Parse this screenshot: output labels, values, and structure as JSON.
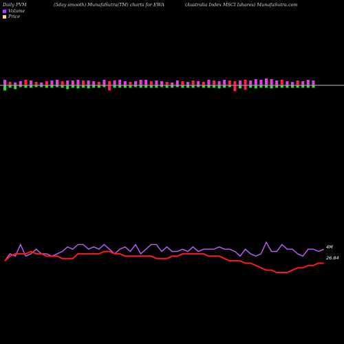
{
  "header": {
    "left": "Daily PVM",
    "center_left": "(5day smooth) MunafaSutra(TM) charts for EWA",
    "center_right": "(Australia  Index MSCI Ishares) MunafaSutra.com"
  },
  "legend": {
    "volume_label": "Volume",
    "price_label": "Price",
    "volume_color": "#a040ff",
    "price_color": "#ffd0a0"
  },
  "chart_data": {
    "type": "line",
    "title": "",
    "points": 62,
    "right_labels": [
      "4M",
      "26.84"
    ],
    "grid": false,
    "legend_position": "top-left",
    "pvm_bars": [
      {
        "up": 8,
        "down": 7,
        "up_color": "#e040e0",
        "down_color": "#30e030"
      },
      {
        "up": 5,
        "down": 3,
        "up_color": "#ff2050",
        "down_color": "#30e030"
      },
      {
        "up": 4,
        "down": 5,
        "up_color": "#e040e0",
        "down_color": "#30e030"
      },
      {
        "up": 6,
        "down": 2,
        "up_color": "#e040e0",
        "down_color": "#30e030"
      },
      {
        "up": 8,
        "down": 3,
        "up_color": "#ff2050",
        "down_color": "#30e030"
      },
      {
        "up": 7,
        "down": 3,
        "up_color": "#e040e0",
        "down_color": "#30e030"
      },
      {
        "up": 5,
        "down": 2,
        "up_color": "#ff2050",
        "down_color": "#30e030"
      },
      {
        "up": 4,
        "down": 2,
        "up_color": "#e040e0",
        "down_color": "#30e030"
      },
      {
        "up": 6,
        "down": 3,
        "up_color": "#ff2050",
        "down_color": "#30e030"
      },
      {
        "up": 7,
        "down": 3,
        "up_color": "#e040e0",
        "down_color": "#30e030"
      },
      {
        "up": 8,
        "down": 2,
        "up_color": "#e040e0",
        "down_color": "#30e030"
      },
      {
        "up": 6,
        "down": 3,
        "up_color": "#ff2050",
        "down_color": "#30e030"
      },
      {
        "up": 7,
        "down": 5,
        "up_color": "#e040e0",
        "down_color": "#30e030"
      },
      {
        "up": 7,
        "down": 3,
        "up_color": "#e040e0",
        "down_color": "#30e030"
      },
      {
        "up": 8,
        "down": 4,
        "up_color": "#e040e0",
        "down_color": "#30e030"
      },
      {
        "up": 7,
        "down": 3,
        "up_color": "#ff2050",
        "down_color": "#30e030"
      },
      {
        "up": 7,
        "down": 4,
        "up_color": "#e040e0",
        "down_color": "#30e030"
      },
      {
        "up": 6,
        "down": 3,
        "up_color": "#e040e0",
        "down_color": "#30e030"
      },
      {
        "up": 5,
        "down": 3,
        "up_color": "#ff2050",
        "down_color": "#30e030"
      },
      {
        "up": 8,
        "down": 2,
        "up_color": "#e040e0",
        "down_color": "#30e030"
      },
      {
        "up": 6,
        "down": 7,
        "up_color": "#ff2050",
        "down_color": "#ff2050"
      },
      {
        "up": 7,
        "down": 3,
        "up_color": "#e040e0",
        "down_color": "#30e030"
      },
      {
        "up": 8,
        "down": 3,
        "up_color": "#e040e0",
        "down_color": "#30e030"
      },
      {
        "up": 6,
        "down": 3,
        "up_color": "#e040e0",
        "down_color": "#30e030"
      },
      {
        "up": 5,
        "down": 3,
        "up_color": "#ff2050",
        "down_color": "#30e030"
      },
      {
        "up": 6,
        "down": 2,
        "up_color": "#e040e0",
        "down_color": "#30e030"
      },
      {
        "up": 8,
        "down": 3,
        "up_color": "#e040e0",
        "down_color": "#30e030"
      },
      {
        "up": 8,
        "down": 3,
        "up_color": "#e040e0",
        "down_color": "#30e030"
      },
      {
        "up": 6,
        "down": 3,
        "up_color": "#ff2050",
        "down_color": "#30e030"
      },
      {
        "up": 7,
        "down": 3,
        "up_color": "#e040e0",
        "down_color": "#30e030"
      },
      {
        "up": 6,
        "down": 2,
        "up_color": "#e040e0",
        "down_color": "#30e030"
      },
      {
        "up": 5,
        "down": 3,
        "up_color": "#ff2050",
        "down_color": "#30e030"
      },
      {
        "up": 4,
        "down": 3,
        "up_color": "#e040e0",
        "down_color": "#30e030"
      },
      {
        "up": 7,
        "down": 2,
        "up_color": "#e040e0",
        "down_color": "#30e030"
      },
      {
        "up": 6,
        "down": 3,
        "up_color": "#ff2050",
        "down_color": "#30e030"
      },
      {
        "up": 5,
        "down": 3,
        "up_color": "#e040e0",
        "down_color": "#30e030"
      },
      {
        "up": 7,
        "down": 3,
        "up_color": "#ff2050",
        "down_color": "#30e030"
      },
      {
        "up": 6,
        "down": 2,
        "up_color": "#e040e0",
        "down_color": "#30e030"
      },
      {
        "up": 5,
        "down": 3,
        "up_color": "#ff2050",
        "down_color": "#30e030"
      },
      {
        "up": 8,
        "down": 3,
        "up_color": "#e040e0",
        "down_color": "#30e030"
      },
      {
        "up": 7,
        "down": 3,
        "up_color": "#ff2050",
        "down_color": "#30e030"
      },
      {
        "up": 6,
        "down": 4,
        "up_color": "#e040e0",
        "down_color": "#30e030"
      },
      {
        "up": 8,
        "down": 3,
        "up_color": "#e040e0",
        "down_color": "#30e030"
      },
      {
        "up": 7,
        "down": 2,
        "up_color": "#ff2050",
        "down_color": "#30e030"
      },
      {
        "up": 6,
        "down": 8,
        "up_color": "#ff2050",
        "down_color": "#ff2050"
      },
      {
        "up": 7,
        "down": 4,
        "up_color": "#e040e0",
        "down_color": "#30e030"
      },
      {
        "up": 8,
        "down": 6,
        "up_color": "#ff2050",
        "down_color": "#ff2050"
      },
      {
        "up": 7,
        "down": 3,
        "up_color": "#e040e0",
        "down_color": "#30e030"
      },
      {
        "up": 9,
        "down": 4,
        "up_color": "#e040e0",
        "down_color": "#30e030"
      },
      {
        "up": 8,
        "down": 3,
        "up_color": "#e040e0",
        "down_color": "#30e030"
      },
      {
        "up": 10,
        "down": 3,
        "up_color": "#e040e0",
        "down_color": "#30e030"
      },
      {
        "up": 9,
        "down": 4,
        "up_color": "#e040e0",
        "down_color": "#30e030"
      },
      {
        "up": 7,
        "down": 3,
        "up_color": "#e040e0",
        "down_color": "#30e030"
      },
      {
        "up": 8,
        "down": 3,
        "up_color": "#ff2050",
        "down_color": "#30e030"
      },
      {
        "up": 6,
        "down": 3,
        "up_color": "#e040e0",
        "down_color": "#30e030"
      },
      {
        "up": 5,
        "down": 3,
        "up_color": "#e040e0",
        "down_color": "#30e030"
      },
      {
        "up": 7,
        "down": 3,
        "up_color": "#ff2050",
        "down_color": "#30e030"
      },
      {
        "up": 6,
        "down": 3,
        "up_color": "#e040e0",
        "down_color": "#30e030"
      },
      {
        "up": 8,
        "down": 3,
        "up_color": "#e040e0",
        "down_color": "#30e030"
      },
      {
        "up": 7,
        "down": 3,
        "up_color": "#e040e0",
        "down_color": "#30e030"
      },
      {
        "up": 0,
        "down": 0,
        "up_color": "#e040e0",
        "down_color": "#30e030"
      },
      {
        "up": 0,
        "down": 0,
        "up_color": "#e040e0",
        "down_color": "#30e030"
      }
    ],
    "series": [
      {
        "color": "#c060ff",
        "values": [
          5,
          8,
          7,
          12,
          7,
          8,
          10,
          8,
          8,
          7,
          8,
          9,
          11,
          10,
          12,
          12,
          10,
          11,
          10,
          12,
          10,
          8,
          10,
          11,
          9,
          12,
          8,
          10,
          12,
          12,
          9,
          11,
          9,
          9,
          10,
          9,
          11,
          9,
          10,
          10,
          10,
          11,
          10,
          10,
          9,
          7,
          10,
          8,
          7,
          8,
          13,
          9,
          9,
          12,
          10,
          10,
          8,
          7,
          10,
          10,
          9,
          10
        ]
      },
      {
        "color": "#ff1a1a",
        "values": [
          5,
          7,
          8,
          8,
          8,
          9,
          8,
          8,
          7,
          7,
          7,
          6,
          6,
          6,
          8,
          8,
          8,
          8,
          8,
          9,
          9,
          8,
          8,
          7,
          7,
          7,
          7,
          7,
          7,
          6,
          6,
          6,
          7,
          7,
          8,
          8,
          8,
          8,
          8,
          7,
          7,
          7,
          6,
          5,
          5,
          5,
          4,
          4,
          3,
          2,
          1,
          1,
          0,
          0,
          0,
          1,
          2,
          2,
          3,
          3,
          4,
          4
        ]
      }
    ]
  }
}
